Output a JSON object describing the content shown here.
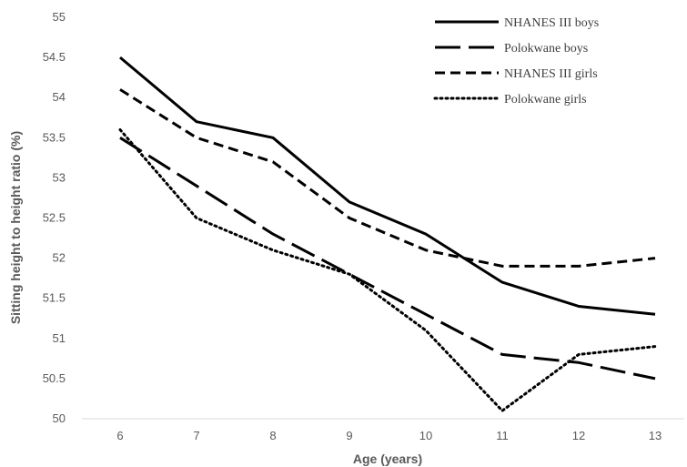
{
  "chart_data": {
    "type": "line",
    "title": "",
    "xlabel": "Age (years)",
    "ylabel": "Sitting height  to height ratio  (%)",
    "x": [
      6,
      7,
      8,
      9,
      10,
      11,
      12,
      13
    ],
    "ylim": [
      50,
      55
    ],
    "yticks": [
      "50",
      "50.5",
      "51",
      "51.5",
      "52",
      "52.5",
      "53",
      "53.5",
      "54",
      "54.5",
      "55"
    ],
    "xticks": [
      "6",
      "7",
      "8",
      "9",
      "10",
      "11",
      "12",
      "13"
    ],
    "grid": false,
    "legend_position": "top-right",
    "series": [
      {
        "name": "NHANES III boys",
        "style": "solid",
        "values": [
          54.5,
          53.7,
          53.5,
          52.7,
          52.3,
          51.7,
          51.4,
          51.3
        ]
      },
      {
        "name": "Polokwane boys",
        "style": "long-dash",
        "values": [
          53.5,
          52.9,
          52.3,
          51.8,
          51.3,
          50.8,
          50.7,
          50.5
        ]
      },
      {
        "name": "NHANES III girls",
        "style": "dash",
        "values": [
          54.1,
          53.5,
          53.2,
          52.5,
          52.1,
          51.9,
          51.9,
          52.0
        ]
      },
      {
        "name": "Polokwane girls",
        "style": "dot",
        "values": [
          53.6,
          52.5,
          52.1,
          51.8,
          51.1,
          50.1,
          50.8,
          50.9
        ]
      }
    ],
    "colors": {
      "line": "#000000",
      "axis": "#d9d9d9",
      "text": "#595959"
    }
  }
}
